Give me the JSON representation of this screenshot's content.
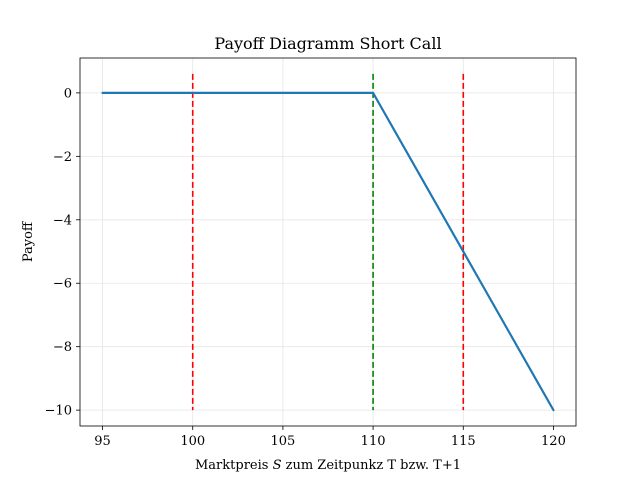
{
  "chart_data": {
    "type": "line",
    "title": "Payoff Diagramm Short Call",
    "xlabel_prefix": "Marktpreis ",
    "xlabel_symbol": "S",
    "xlabel_suffix": " zum Zeitpunkz T bzw. T+1",
    "ylabel": "Payoff",
    "xlim": [
      93.75,
      121.25
    ],
    "ylim": [
      -10.5,
      1.1
    ],
    "xticks": [
      95,
      100,
      105,
      110,
      115,
      120
    ],
    "xtick_labels": [
      "95",
      "100",
      "105",
      "110",
      "115",
      "120"
    ],
    "yticks": [
      0,
      -2,
      -4,
      -6,
      -8,
      -10
    ],
    "ytick_labels": [
      "0",
      "−2",
      "−4",
      "−6",
      "−8",
      "−10"
    ],
    "grid": true,
    "series": [
      {
        "color": "#1f77b4",
        "x": [
          95,
          110,
          120
        ],
        "y": [
          0,
          0,
          -10
        ]
      }
    ],
    "vlines": [
      {
        "x": 100,
        "y_range": [
          -10,
          0.6
        ],
        "color": "#ff0000"
      },
      {
        "x": 110,
        "y_range": [
          -10,
          0.6
        ],
        "color": "#008000"
      },
      {
        "x": 115,
        "y_range": [
          -10,
          0.6
        ],
        "color": "#ff0000"
      }
    ]
  }
}
